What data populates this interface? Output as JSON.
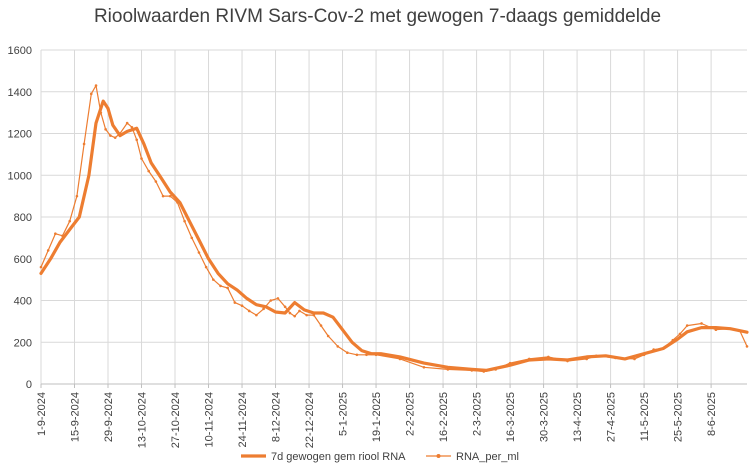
{
  "chart_data": {
    "type": "line",
    "title": "Rioolwaarden RIVM Sars-Cov-2 met gewogen 7-daags gemiddelde",
    "xlabel": "",
    "ylabel": "",
    "ylim": [
      0,
      1600
    ],
    "yticks": [
      "0",
      "200",
      "400",
      "600",
      "800",
      "1000",
      "1200",
      "1400",
      "1600"
    ],
    "grid": true,
    "legend_position": "bottom",
    "x_tick_labels": [
      "1-9-2024",
      "15-9-2024",
      "29-9-2024",
      "13-10-2024",
      "27-10-2024",
      "10-11-2024",
      "24-11-2024",
      "8-12-2024",
      "22-12-2024",
      "5-1-2025",
      "19-1-2025",
      "2-2-2025",
      "16-2-2025",
      "2-3-2025",
      "16-3-2025",
      "30-3-2025",
      "13-4-2025",
      "27-4-2025",
      "11-5-2025",
      "25-5-2025",
      "8-6-2025"
    ],
    "x_tick_day_offsets": [
      0,
      14,
      28,
      42,
      56,
      70,
      84,
      98,
      112,
      126,
      140,
      154,
      168,
      182,
      196,
      210,
      224,
      238,
      252,
      266,
      280
    ],
    "x_range_days": [
      0,
      295
    ],
    "colors": {
      "smooth": "#ed7d31",
      "raw": "#ed7d31",
      "grid": "#d9d9d9",
      "axis": "#bfbfbf"
    },
    "series": [
      {
        "name": "7d gewogen gem riool RNA",
        "style": "thick-line",
        "x": [
          0,
          4,
          8,
          12,
          16,
          20,
          23,
          26,
          28,
          30,
          33,
          36,
          40,
          43,
          46,
          50,
          54,
          58,
          62,
          66,
          70,
          74,
          78,
          82,
          86,
          90,
          94,
          98,
          102,
          106,
          110,
          114,
          118,
          122,
          126,
          130,
          134,
          138,
          142,
          150,
          160,
          170,
          180,
          186,
          196,
          204,
          212,
          220,
          228,
          236,
          244,
          252,
          260,
          266,
          270,
          276,
          282,
          288,
          295
        ],
        "y": [
          530,
          600,
          680,
          740,
          800,
          1000,
          1250,
          1355,
          1320,
          1240,
          1190,
          1210,
          1225,
          1150,
          1060,
          990,
          920,
          870,
          780,
          690,
          600,
          530,
          480,
          450,
          410,
          380,
          370,
          345,
          340,
          390,
          355,
          340,
          340,
          320,
          260,
          200,
          160,
          145,
          145,
          130,
          100,
          80,
          70,
          65,
          90,
          115,
          120,
          115,
          130,
          135,
          120,
          145,
          170,
          215,
          250,
          270,
          270,
          265,
          248
        ]
      },
      {
        "name": "RNA_per_ml",
        "style": "thin-line-markers",
        "x": [
          0,
          3,
          6,
          9,
          12,
          15,
          18,
          21,
          23,
          25,
          27,
          29,
          31,
          33,
          36,
          38,
          40,
          42,
          45,
          48,
          51,
          54,
          57,
          60,
          63,
          66,
          69,
          72,
          75,
          78,
          81,
          84,
          87,
          90,
          93,
          96,
          99,
          102,
          104,
          106,
          108,
          111,
          114,
          117,
          120,
          124,
          128,
          132,
          136,
          140,
          150,
          160,
          170,
          180,
          185,
          190,
          196,
          204,
          212,
          220,
          228,
          232,
          240,
          248,
          252,
          256,
          260,
          264,
          267,
          270,
          276,
          282,
          288,
          292,
          295
        ],
        "y": [
          560,
          640,
          720,
          710,
          780,
          900,
          1150,
          1390,
          1430,
          1300,
          1220,
          1190,
          1180,
          1200,
          1250,
          1230,
          1170,
          1080,
          1020,
          970,
          900,
          900,
          870,
          780,
          700,
          630,
          560,
          500,
          470,
          460,
          390,
          375,
          350,
          330,
          360,
          400,
          410,
          370,
          340,
          325,
          350,
          330,
          330,
          280,
          230,
          180,
          150,
          140,
          140,
          140,
          120,
          80,
          70,
          65,
          60,
          70,
          100,
          120,
          130,
          110,
          120,
          135,
          125,
          120,
          140,
          165,
          170,
          210,
          240,
          280,
          290,
          260,
          265,
          255,
          180
        ]
      }
    ]
  }
}
